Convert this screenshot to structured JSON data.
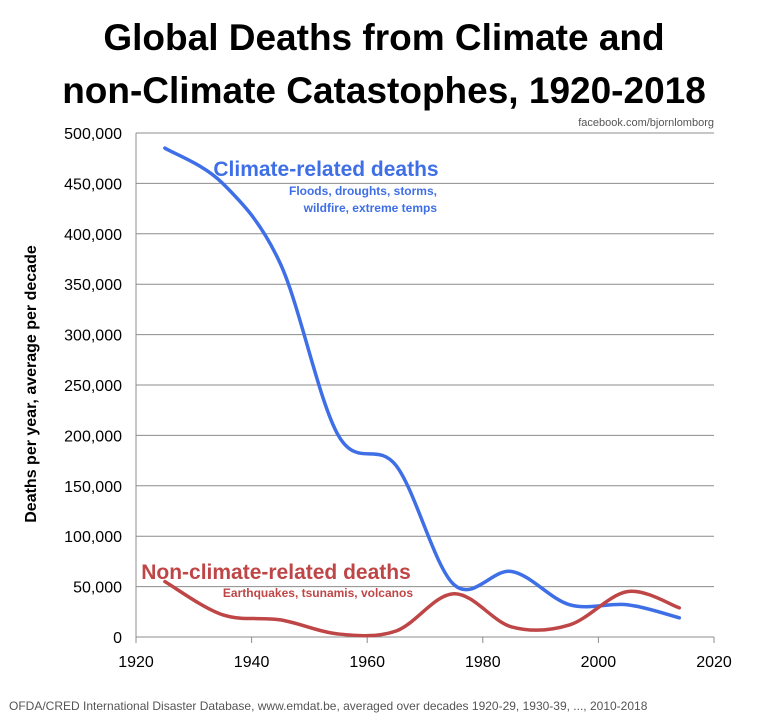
{
  "chart_data": {
    "type": "line",
    "title_line1": "Global Deaths from Climate and",
    "title_line2": "non-Climate Catastophes, 1920-2018",
    "watermark": "facebook.com/bjornlomborg",
    "ylabel": "Deaths per year, average per decade",
    "xlabel": "",
    "source": "OFDA/CRED International Disaster Database, www.emdat.be, averaged over decades 1920-29, 1930-39, ..., 2010-2018",
    "xlim": [
      1920,
      2020
    ],
    "ylim": [
      0,
      500000
    ],
    "x_ticks": [
      1920,
      1940,
      1960,
      1980,
      2000,
      2020
    ],
    "x_tick_labels": [
      "1920",
      "1940",
      "1960",
      "1980",
      "2000",
      "2020"
    ],
    "y_ticks": [
      0,
      50000,
      100000,
      150000,
      200000,
      250000,
      300000,
      350000,
      400000,
      450000,
      500000
    ],
    "y_tick_labels": [
      "0",
      "50,000",
      "100,000",
      "150,000",
      "200,000",
      "250,000",
      "300,000",
      "350,000",
      "400,000",
      "450,000",
      "500,000"
    ],
    "grid": true,
    "series": [
      {
        "name": "Climate-related deaths",
        "subtitle_line1": "Floods, droughts, storms,",
        "subtitle_line2": "wildfire, extreme temps",
        "color": "#3f6fe6",
        "x": [
          1925,
          1935,
          1945,
          1955,
          1965,
          1975,
          1985,
          1995,
          2005,
          2014
        ],
        "values": [
          485000,
          450000,
          370000,
          200000,
          170000,
          52000,
          65000,
          32000,
          32000,
          19000
        ]
      },
      {
        "name": "Non-climate-related deaths",
        "subtitle_line1": "Earthquakes, tsunamis, volcanos",
        "subtitle_line2": "",
        "color": "#bf4646",
        "x": [
          1925,
          1935,
          1945,
          1955,
          1965,
          1975,
          1985,
          1995,
          2005,
          2014
        ],
        "values": [
          55000,
          22000,
          17000,
          3000,
          6000,
          43000,
          10000,
          12000,
          45000,
          29000
        ]
      }
    ]
  }
}
